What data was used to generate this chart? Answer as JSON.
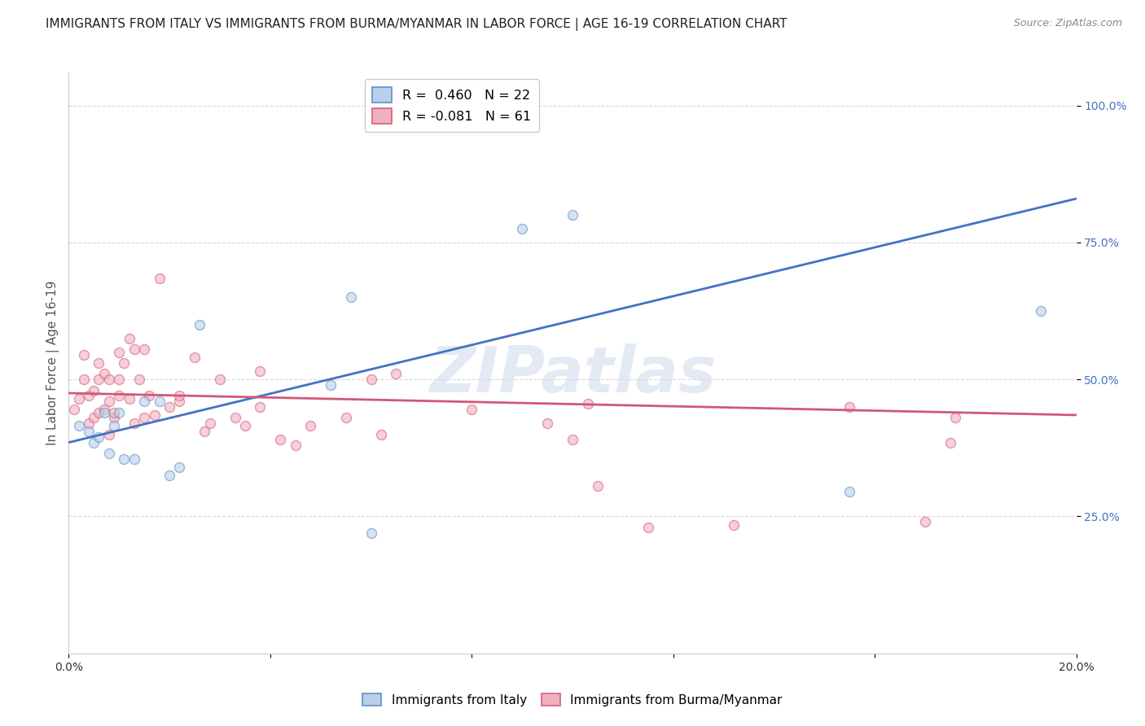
{
  "title": "IMMIGRANTS FROM ITALY VS IMMIGRANTS FROM BURMA/MYANMAR IN LABOR FORCE | AGE 16-19 CORRELATION CHART",
  "source": "Source: ZipAtlas.com",
  "ylabel": "In Labor Force | Age 16-19",
  "xlim": [
    0.0,
    0.2
  ],
  "ylim": [
    0.0,
    1.06
  ],
  "x_ticks": [
    0.0,
    0.04,
    0.08,
    0.12,
    0.16,
    0.2
  ],
  "x_tick_labels": [
    "0.0%",
    "",
    "",
    "",
    "",
    "20.0%"
  ],
  "y_ticks": [
    0.25,
    0.5,
    0.75,
    1.0
  ],
  "y_tick_labels": [
    "25.0%",
    "50.0%",
    "75.0%",
    "100.0%"
  ],
  "italy_R": 0.46,
  "italy_N": 22,
  "burma_R": -0.081,
  "burma_N": 61,
  "italy_color": "#b8d0ea",
  "burma_color": "#f2b0be",
  "italy_edge_color": "#6090c8",
  "burma_edge_color": "#d06080",
  "italy_line_color": "#4472c4",
  "burma_line_color": "#d05878",
  "legend_italy_label": "Immigrants from Italy",
  "legend_burma_label": "Immigrants from Burma/Myanmar",
  "watermark": "ZIPatlas",
  "italy_scatter_x": [
    0.002,
    0.004,
    0.005,
    0.006,
    0.007,
    0.008,
    0.009,
    0.01,
    0.011,
    0.013,
    0.015,
    0.018,
    0.02,
    0.022,
    0.026,
    0.052,
    0.056,
    0.06,
    0.09,
    0.1,
    0.155,
    0.193
  ],
  "italy_scatter_y": [
    0.415,
    0.405,
    0.385,
    0.395,
    0.44,
    0.365,
    0.415,
    0.44,
    0.355,
    0.355,
    0.46,
    0.46,
    0.325,
    0.34,
    0.6,
    0.49,
    0.65,
    0.22,
    0.775,
    0.8,
    0.295,
    0.625
  ],
  "burma_scatter_x": [
    0.001,
    0.002,
    0.003,
    0.003,
    0.004,
    0.004,
    0.005,
    0.005,
    0.006,
    0.006,
    0.006,
    0.007,
    0.007,
    0.008,
    0.008,
    0.008,
    0.009,
    0.009,
    0.01,
    0.01,
    0.01,
    0.011,
    0.012,
    0.012,
    0.013,
    0.013,
    0.014,
    0.015,
    0.015,
    0.016,
    0.017,
    0.018,
    0.02,
    0.022,
    0.022,
    0.025,
    0.027,
    0.028,
    0.03,
    0.033,
    0.035,
    0.038,
    0.038,
    0.042,
    0.045,
    0.048,
    0.055,
    0.06,
    0.062,
    0.065,
    0.08,
    0.095,
    0.1,
    0.103,
    0.105,
    0.115,
    0.132,
    0.155,
    0.17,
    0.175,
    0.176
  ],
  "burma_scatter_y": [
    0.445,
    0.465,
    0.5,
    0.545,
    0.42,
    0.47,
    0.43,
    0.48,
    0.44,
    0.5,
    0.53,
    0.445,
    0.51,
    0.4,
    0.46,
    0.5,
    0.43,
    0.44,
    0.47,
    0.5,
    0.55,
    0.53,
    0.465,
    0.575,
    0.42,
    0.555,
    0.5,
    0.43,
    0.555,
    0.47,
    0.435,
    0.685,
    0.45,
    0.46,
    0.47,
    0.54,
    0.405,
    0.42,
    0.5,
    0.43,
    0.415,
    0.45,
    0.515,
    0.39,
    0.38,
    0.415,
    0.43,
    0.5,
    0.4,
    0.51,
    0.445,
    0.42,
    0.39,
    0.455,
    0.305,
    0.23,
    0.235,
    0.45,
    0.24,
    0.385,
    0.43
  ],
  "italy_trendline_x": [
    0.0,
    0.2
  ],
  "italy_trendline_y": [
    0.385,
    0.83
  ],
  "burma_trendline_x": [
    0.0,
    0.2
  ],
  "burma_trendline_y": [
    0.475,
    0.435
  ],
  "background_color": "#ffffff",
  "grid_color": "#d8d8d8",
  "title_fontsize": 11,
  "axis_label_fontsize": 11,
  "tick_fontsize": 10,
  "tick_color": "#4472c4",
  "scatter_size": 75,
  "scatter_alpha": 0.6,
  "scatter_linewidth": 1.0
}
